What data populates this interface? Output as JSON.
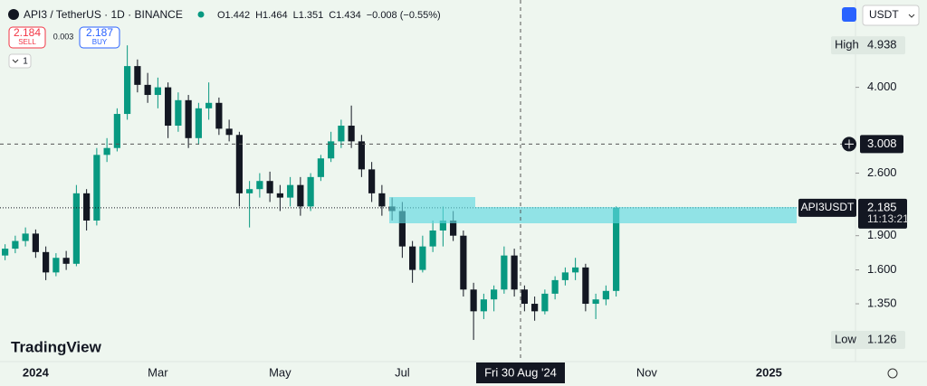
{
  "header": {
    "symbol": "API3 / TetherUS · 1D · BINANCE",
    "ohlc": [
      "O1.442",
      "H1.464",
      "L1.351",
      "C1.434",
      "−0.008 (−0.55%)"
    ],
    "sell_price": "2.184",
    "sell_label": "SELL",
    "spread": "0.003",
    "buy_price": "2.187",
    "buy_label": "BUY",
    "indicator_count": "1",
    "currency": "USDT",
    "logo": "TradingView"
  },
  "chart_data": {
    "type": "candlestick",
    "log_scale": true,
    "up_color": "#089981",
    "down_color": "#131722",
    "categories": [
      null,
      null,
      null,
      "2024",
      null,
      null,
      null,
      null,
      null,
      null,
      null,
      null,
      null,
      null,
      null,
      "Mar",
      null,
      null,
      null,
      null,
      null,
      null,
      null,
      null,
      null,
      null,
      null,
      "May",
      null,
      null,
      null,
      null,
      null,
      null,
      null,
      null,
      null,
      null,
      null,
      "Jul",
      null,
      null,
      null,
      null,
      null,
      null,
      null,
      null,
      null,
      null,
      null,
      null,
      null,
      null,
      null,
      null,
      null,
      null,
      null,
      null,
      null,
      null,
      null,
      "Nov",
      null,
      null,
      null,
      null,
      null,
      null,
      null,
      null,
      null,
      null,
      null,
      "2025",
      null,
      null,
      null,
      null,
      null,
      null,
      null,
      null
    ],
    "open": [
      1.72,
      1.78,
      1.85,
      1.92,
      1.75,
      1.58,
      1.7,
      1.65,
      2.35,
      2.05,
      2.85,
      2.95,
      3.5,
      4.45,
      4.05,
      3.85,
      4.0,
      3.3,
      3.75,
      3.1,
      3.6,
      3.7,
      3.25,
      3.15,
      2.35,
      2.4,
      2.5,
      2.35,
      2.3,
      2.45,
      2.2,
      2.55,
      2.8,
      3.05,
      3.3,
      3.05,
      2.65,
      2.35,
      2.2,
      2.15,
      1.8,
      1.6,
      1.8,
      1.95,
      2.05,
      1.9,
      1.45,
      1.3,
      1.38,
      1.45,
      1.72,
      1.45,
      1.35,
      1.3,
      1.42,
      1.52,
      1.58,
      1.62,
      1.35,
      1.38,
      1.44,
      null,
      null,
      null,
      null,
      null,
      null,
      null,
      null,
      null,
      null,
      null,
      null,
      null,
      null,
      null,
      null,
      null,
      null,
      null,
      null,
      null,
      null,
      null
    ],
    "high": [
      1.82,
      1.9,
      1.98,
      1.96,
      1.8,
      1.74,
      1.76,
      2.45,
      2.4,
      2.95,
      3.1,
      3.6,
      4.938,
      4.6,
      4.3,
      4.2,
      4.1,
      3.9,
      3.85,
      3.7,
      4.1,
      3.8,
      3.4,
      3.2,
      2.5,
      2.6,
      2.62,
      2.45,
      2.55,
      2.55,
      2.6,
      2.85,
      3.2,
      3.4,
      3.65,
      3.15,
      2.75,
      2.45,
      2.3,
      2.25,
      1.85,
      1.9,
      2.05,
      2.2,
      2.15,
      1.95,
      1.5,
      1.42,
      1.48,
      1.8,
      1.78,
      1.48,
      1.4,
      1.45,
      1.55,
      1.62,
      1.7,
      1.65,
      1.42,
      1.48,
      2.2,
      null,
      null,
      null,
      null,
      null,
      null,
      null,
      null,
      null,
      null,
      null,
      null,
      null,
      null,
      null,
      null,
      null,
      null,
      null,
      null,
      null,
      null,
      null
    ],
    "low": [
      1.68,
      1.74,
      1.8,
      1.7,
      1.52,
      1.55,
      1.6,
      1.63,
      1.95,
      2.0,
      2.75,
      2.9,
      3.4,
      3.9,
      3.7,
      3.6,
      3.1,
      3.2,
      2.95,
      3.0,
      3.4,
      3.15,
      3.05,
      2.2,
      1.98,
      2.3,
      2.25,
      2.15,
      2.2,
      2.1,
      2.15,
      2.5,
      2.75,
      2.95,
      2.95,
      2.55,
      2.25,
      2.1,
      2.05,
      1.7,
      1.5,
      1.58,
      1.75,
      1.8,
      1.85,
      1.4,
      1.126,
      1.25,
      1.3,
      1.42,
      1.4,
      1.3,
      1.24,
      1.28,
      1.38,
      1.48,
      1.52,
      1.3,
      1.25,
      1.34,
      1.4,
      null,
      null,
      null,
      null,
      null,
      null,
      null,
      null,
      null,
      null,
      null,
      null,
      null,
      null,
      null,
      null,
      null,
      null,
      null,
      null,
      null,
      null,
      null
    ],
    "close": [
      1.78,
      1.85,
      1.92,
      1.75,
      1.58,
      1.7,
      1.65,
      2.35,
      2.05,
      2.85,
      2.95,
      3.5,
      4.45,
      4.05,
      3.85,
      4.0,
      3.3,
      3.75,
      3.1,
      3.6,
      3.7,
      3.25,
      3.15,
      2.35,
      2.4,
      2.5,
      2.35,
      2.3,
      2.45,
      2.2,
      2.55,
      2.8,
      3.05,
      3.3,
      3.05,
      2.65,
      2.35,
      2.2,
      2.15,
      1.8,
      1.6,
      1.8,
      1.95,
      2.05,
      1.9,
      1.45,
      1.3,
      1.38,
      1.45,
      1.72,
      1.45,
      1.35,
      1.3,
      1.42,
      1.52,
      1.58,
      1.62,
      1.35,
      1.38,
      1.44,
      2.185,
      null,
      null,
      null,
      null,
      null,
      null,
      null,
      null,
      null,
      null,
      null,
      null,
      null,
      null,
      null,
      null,
      null,
      null,
      null,
      null,
      null,
      null,
      null
    ],
    "ylim": [
      1.01,
      6.2
    ],
    "yticks": [
      {
        "value": 1.35,
        "label": "1.350"
      },
      {
        "value": 1.6,
        "label": "1.600"
      },
      {
        "value": 1.9,
        "label": "1.900"
      },
      {
        "value": 2.6,
        "label": "2.600"
      },
      {
        "value": 4,
        "label": "4.000"
      }
    ],
    "high_marker": {
      "label": "High",
      "value": 4.938,
      "value_label": "4.938"
    },
    "low_marker": {
      "label": "Low",
      "value": 1.126,
      "value_label": "1.126"
    },
    "last_price": {
      "name": "API3USDT",
      "value": 2.185,
      "value_label": "2.185",
      "countdown": "11:13:21"
    },
    "crosshair": {
      "value": 3.008,
      "value_label": "3.008",
      "date": "Fri 30 Aug '24"
    }
  }
}
